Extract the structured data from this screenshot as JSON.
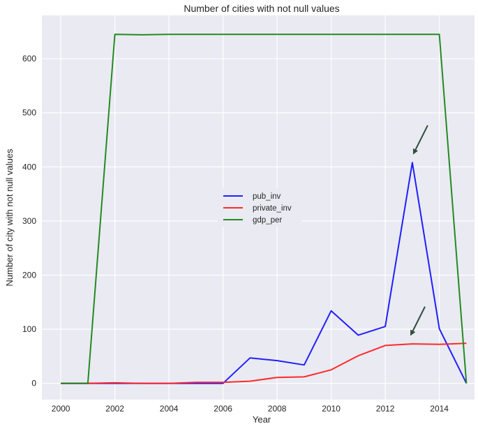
{
  "chart_data": {
    "type": "line",
    "title": "Number of cities with not null values",
    "xlabel": "Year",
    "ylabel": "Number of city with not null values",
    "xlim": [
      1999.3,
      2015.3
    ],
    "ylim": [
      -30,
      680
    ],
    "xticks": [
      2000,
      2002,
      2004,
      2006,
      2008,
      2010,
      2012,
      2014
    ],
    "yticks": [
      0,
      100,
      200,
      300,
      400,
      500,
      600
    ],
    "grid": true,
    "legend_position": "center",
    "x": [
      2000,
      2001,
      2002,
      2003,
      2004,
      2005,
      2006,
      2007,
      2008,
      2009,
      2010,
      2011,
      2012,
      2013,
      2014,
      2015
    ],
    "series": [
      {
        "name": "pub_inv",
        "color": "#1f1fff",
        "values": [
          0,
          0,
          0,
          0,
          0,
          0,
          0,
          47,
          42,
          34,
          134,
          89,
          105,
          408,
          101,
          0
        ]
      },
      {
        "name": "private_inv",
        "color": "#ff2a2a",
        "values": [
          0,
          0,
          1,
          0,
          0,
          2,
          2,
          4,
          11,
          12,
          25,
          51,
          70,
          73,
          72,
          74
        ]
      },
      {
        "name": "gdp_per",
        "color": "#228b22",
        "values": [
          0,
          0,
          645,
          644,
          645,
          645,
          645,
          645,
          645,
          645,
          645,
          645,
          645,
          645,
          645,
          0
        ]
      }
    ],
    "annotations": [
      {
        "type": "arrow",
        "color": "#2f4f3f",
        "target": {
          "x": 2013,
          "y": 420
        }
      },
      {
        "type": "arrow",
        "color": "#2f4f3f",
        "target": {
          "x": 2012.9,
          "y": 85
        }
      }
    ]
  }
}
